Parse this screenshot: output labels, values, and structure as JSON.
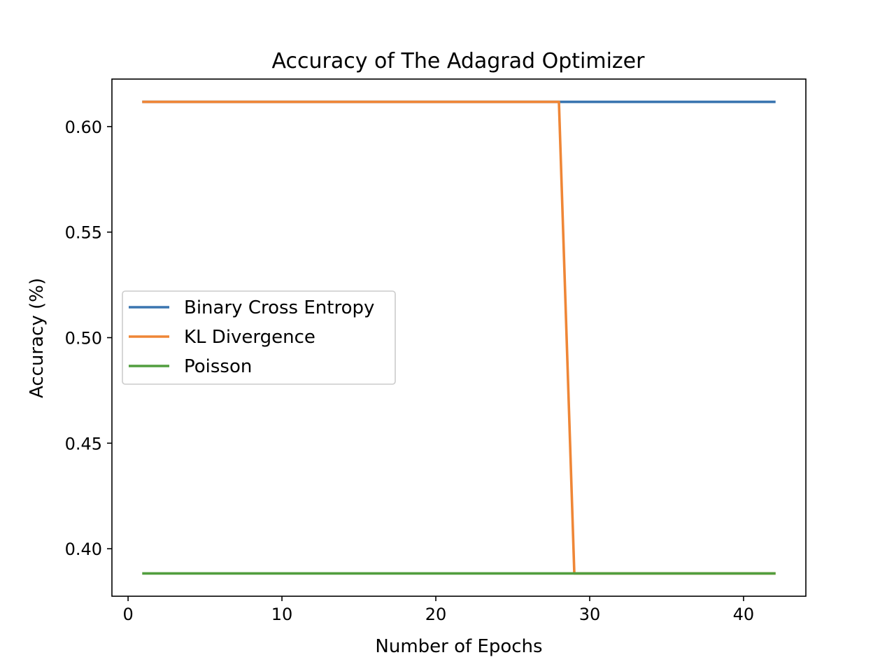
{
  "chart_data": {
    "type": "line",
    "title": "Accuracy of The Adagrad Optimizer",
    "xlabel": "Number of Epochs",
    "ylabel": "Accuracy (%)",
    "xlim": [
      -1.05,
      44.05
    ],
    "ylim": [
      0.3775,
      0.6225
    ],
    "xticks": [
      0,
      10,
      20,
      30,
      40
    ],
    "xtick_labels": [
      "0",
      "10",
      "20",
      "30",
      "40"
    ],
    "yticks": [
      0.4,
      0.45,
      0.5,
      0.55,
      0.6
    ],
    "ytick_labels": [
      "0.40",
      "0.45",
      "0.50",
      "0.55",
      "0.60"
    ],
    "grid": false,
    "legend_position": "center-left",
    "series": [
      {
        "name": "Binary Cross Entropy",
        "color": "#3a75b0",
        "points": [
          [
            1,
            0.6117
          ],
          [
            42,
            0.6117
          ]
        ]
      },
      {
        "name": "KL Divergence",
        "color": "#ef8636",
        "points": [
          [
            1,
            0.6117
          ],
          [
            28,
            0.6117
          ],
          [
            29,
            0.3883
          ],
          [
            42,
            0.3883
          ]
        ]
      },
      {
        "name": "Poisson",
        "color": "#519e3e",
        "points": [
          [
            1,
            0.3883
          ],
          [
            42,
            0.3883
          ]
        ]
      }
    ]
  }
}
